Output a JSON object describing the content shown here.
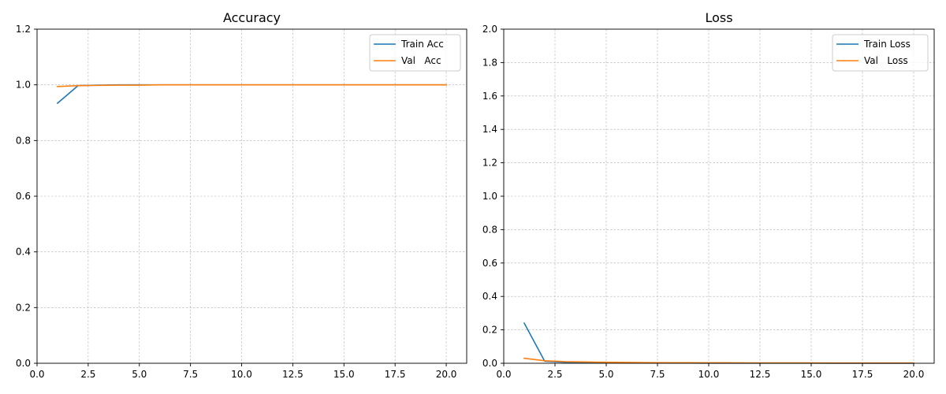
{
  "chart_data": [
    {
      "type": "line",
      "title": "Accuracy",
      "xlabel": "",
      "ylabel": "",
      "xlim": [
        0,
        21
      ],
      "ylim": [
        0,
        1.2
      ],
      "xticks": [
        0,
        2.5,
        5,
        7.5,
        10,
        12.5,
        15,
        17.5,
        20
      ],
      "xtick_labels": [
        "0.0",
        "2.5",
        "5.0",
        "7.5",
        "10.0",
        "12.5",
        "15.0",
        "17.5",
        "20.0"
      ],
      "yticks": [
        0,
        0.2,
        0.4,
        0.6,
        0.8,
        1.0,
        1.2
      ],
      "ytick_labels": [
        "0.0",
        "0.2",
        "0.4",
        "0.6",
        "0.8",
        "1.0",
        "1.2"
      ],
      "grid": true,
      "legend_position": "top-right",
      "x": [
        1,
        2,
        3,
        4,
        5,
        6,
        7,
        8,
        9,
        10,
        11,
        12,
        13,
        14,
        15,
        16,
        17,
        18,
        19,
        20
      ],
      "series": [
        {
          "name": "Train Acc",
          "color": "#1f77b4",
          "values": [
            0.934,
            0.997,
            0.999,
            1.0,
            1.0,
            1.0,
            1.0,
            1.0,
            1.0,
            1.0,
            1.0,
            1.0,
            1.0,
            1.0,
            1.0,
            1.0,
            1.0,
            1.0,
            1.0,
            1.0
          ]
        },
        {
          "name": "Val   Acc",
          "color": "#ff7f0e",
          "values": [
            0.994,
            0.997,
            0.998,
            0.999,
            0.999,
            1.0,
            1.0,
            1.0,
            1.0,
            1.0,
            1.0,
            1.0,
            1.0,
            1.0,
            1.0,
            1.0,
            1.0,
            1.0,
            1.0,
            1.0
          ]
        }
      ]
    },
    {
      "type": "line",
      "title": "Loss",
      "xlabel": "",
      "ylabel": "",
      "xlim": [
        0,
        21
      ],
      "ylim": [
        0,
        2.0
      ],
      "xticks": [
        0,
        2.5,
        5,
        7.5,
        10,
        12.5,
        15,
        17.5,
        20
      ],
      "xtick_labels": [
        "0.0",
        "2.5",
        "5.0",
        "7.5",
        "10.0",
        "12.5",
        "15.0",
        "17.5",
        "20.0"
      ],
      "yticks": [
        0,
        0.2,
        0.4,
        0.6,
        0.8,
        1.0,
        1.2,
        1.4,
        1.6,
        1.8,
        2.0
      ],
      "ytick_labels": [
        "0.0",
        "0.2",
        "0.4",
        "0.6",
        "0.8",
        "1.0",
        "1.2",
        "1.4",
        "1.6",
        "1.8",
        "2.0"
      ],
      "grid": true,
      "legend_position": "top-right",
      "x": [
        1,
        2,
        3,
        4,
        5,
        6,
        7,
        8,
        9,
        10,
        11,
        12,
        13,
        14,
        15,
        16,
        17,
        18,
        19,
        20
      ],
      "series": [
        {
          "name": "Train Loss",
          "color": "#1f77b4",
          "values": [
            0.24,
            0.012,
            0.006,
            0.004,
            0.003,
            0.002,
            0.002,
            0.0015,
            0.0012,
            0.001,
            0.001,
            0.0008,
            0.0007,
            0.0006,
            0.0006,
            0.0005,
            0.0005,
            0.0004,
            0.0004,
            0.0004
          ]
        },
        {
          "name": "Val   Loss",
          "color": "#ff7f0e",
          "values": [
            0.03,
            0.015,
            0.01,
            0.008,
            0.006,
            0.005,
            0.004,
            0.0035,
            0.003,
            0.0028,
            0.0025,
            0.0023,
            0.0021,
            0.002,
            0.0019,
            0.0018,
            0.0017,
            0.0016,
            0.0015,
            0.0015
          ]
        }
      ]
    }
  ]
}
